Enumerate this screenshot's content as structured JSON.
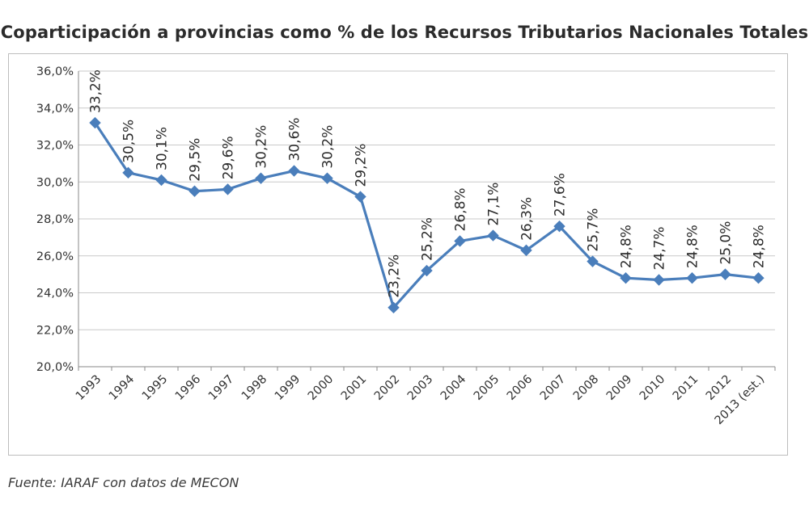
{
  "chart_data": {
    "type": "line",
    "title": "Coparticipación a provincias como % de los Recursos Tributarios Nacionales Totales",
    "categories": [
      "1993",
      "1994",
      "1995",
      "1996",
      "1997",
      "1998",
      "1999",
      "2000",
      "2001",
      "2002",
      "2003",
      "2004",
      "2005",
      "2006",
      "2007",
      "2008",
      "2009",
      "2010",
      "2011",
      "2012",
      "2013 (est.)"
    ],
    "series": [
      {
        "values": [
          33.2,
          30.5,
          30.1,
          29.5,
          29.6,
          30.2,
          30.6,
          30.2,
          29.2,
          23.2,
          25.2,
          26.8,
          27.1,
          26.3,
          27.6,
          25.7,
          24.8,
          24.7,
          24.8,
          25.0,
          24.8
        ],
        "data_labels": [
          "33,2%",
          "30,5%",
          "30,1%",
          "29,5%",
          "29,6%",
          "30,2%",
          "30,6%",
          "30,2%",
          "29,2%",
          "23,2%",
          "25,2%",
          "26,8%",
          "27,1%",
          "26,3%",
          "27,6%",
          "25,7%",
          "24,8%",
          "24,7%",
          "24,8%",
          "25,0%",
          "24,8%"
        ],
        "color": "#4a7ebb"
      }
    ],
    "ylim": [
      20,
      36
    ],
    "yticks": [
      20,
      22,
      24,
      26,
      28,
      30,
      32,
      34,
      36
    ],
    "ytick_labels": [
      "20,0%",
      "22,0%",
      "24,0%",
      "26,0%",
      "28,0%",
      "30,0%",
      "32,0%",
      "34,0%",
      "36,0%"
    ],
    "grid": true,
    "legend": "none"
  },
  "source": "Fuente: IARAF con datos de MECON"
}
